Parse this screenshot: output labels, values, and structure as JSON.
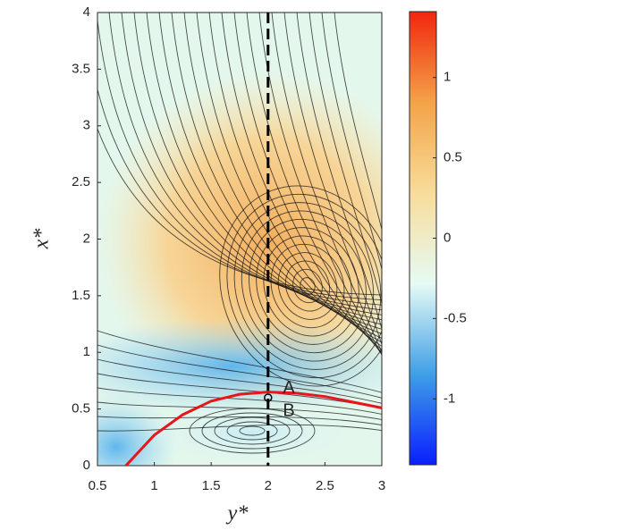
{
  "chart_data": {
    "type": "streamline",
    "xlabel": "y*",
    "ylabel": "x*",
    "xlim": [
      0.5,
      3
    ],
    "ylim": [
      0,
      4
    ],
    "xticks": [
      0.5,
      1,
      1.5,
      2,
      2.5,
      3
    ],
    "yticks": [
      0,
      0.5,
      1,
      1.5,
      2,
      2.5,
      3,
      3.5,
      4
    ],
    "clim": [
      -1.41,
      1.41
    ],
    "cticks": [
      -1,
      -0.5,
      0,
      0.5,
      1
    ],
    "colormap": [
      "#0a1fff",
      "#3f9fe6",
      "#e6fbf5",
      "#f8dc9a",
      "#f3a348",
      "#f2260f"
    ],
    "series": [
      {
        "name": "curve",
        "color": "#e8161b",
        "x": [
          0.75,
          1.0,
          1.25,
          1.5,
          1.75,
          2.0,
          2.25,
          2.5,
          2.75,
          3.0
        ],
        "values": [
          0,
          0.27,
          0.45,
          0.57,
          0.63,
          0.65,
          0.64,
          0.61,
          0.56,
          0.51
        ]
      }
    ],
    "vline": 2,
    "point": {
      "x": 2,
      "y": 0.6
    },
    "annotations": [
      {
        "text": "A",
        "x": 2.13,
        "y": 0.68
      },
      {
        "text": "B",
        "x": 2.13,
        "y": 0.48
      }
    ]
  }
}
